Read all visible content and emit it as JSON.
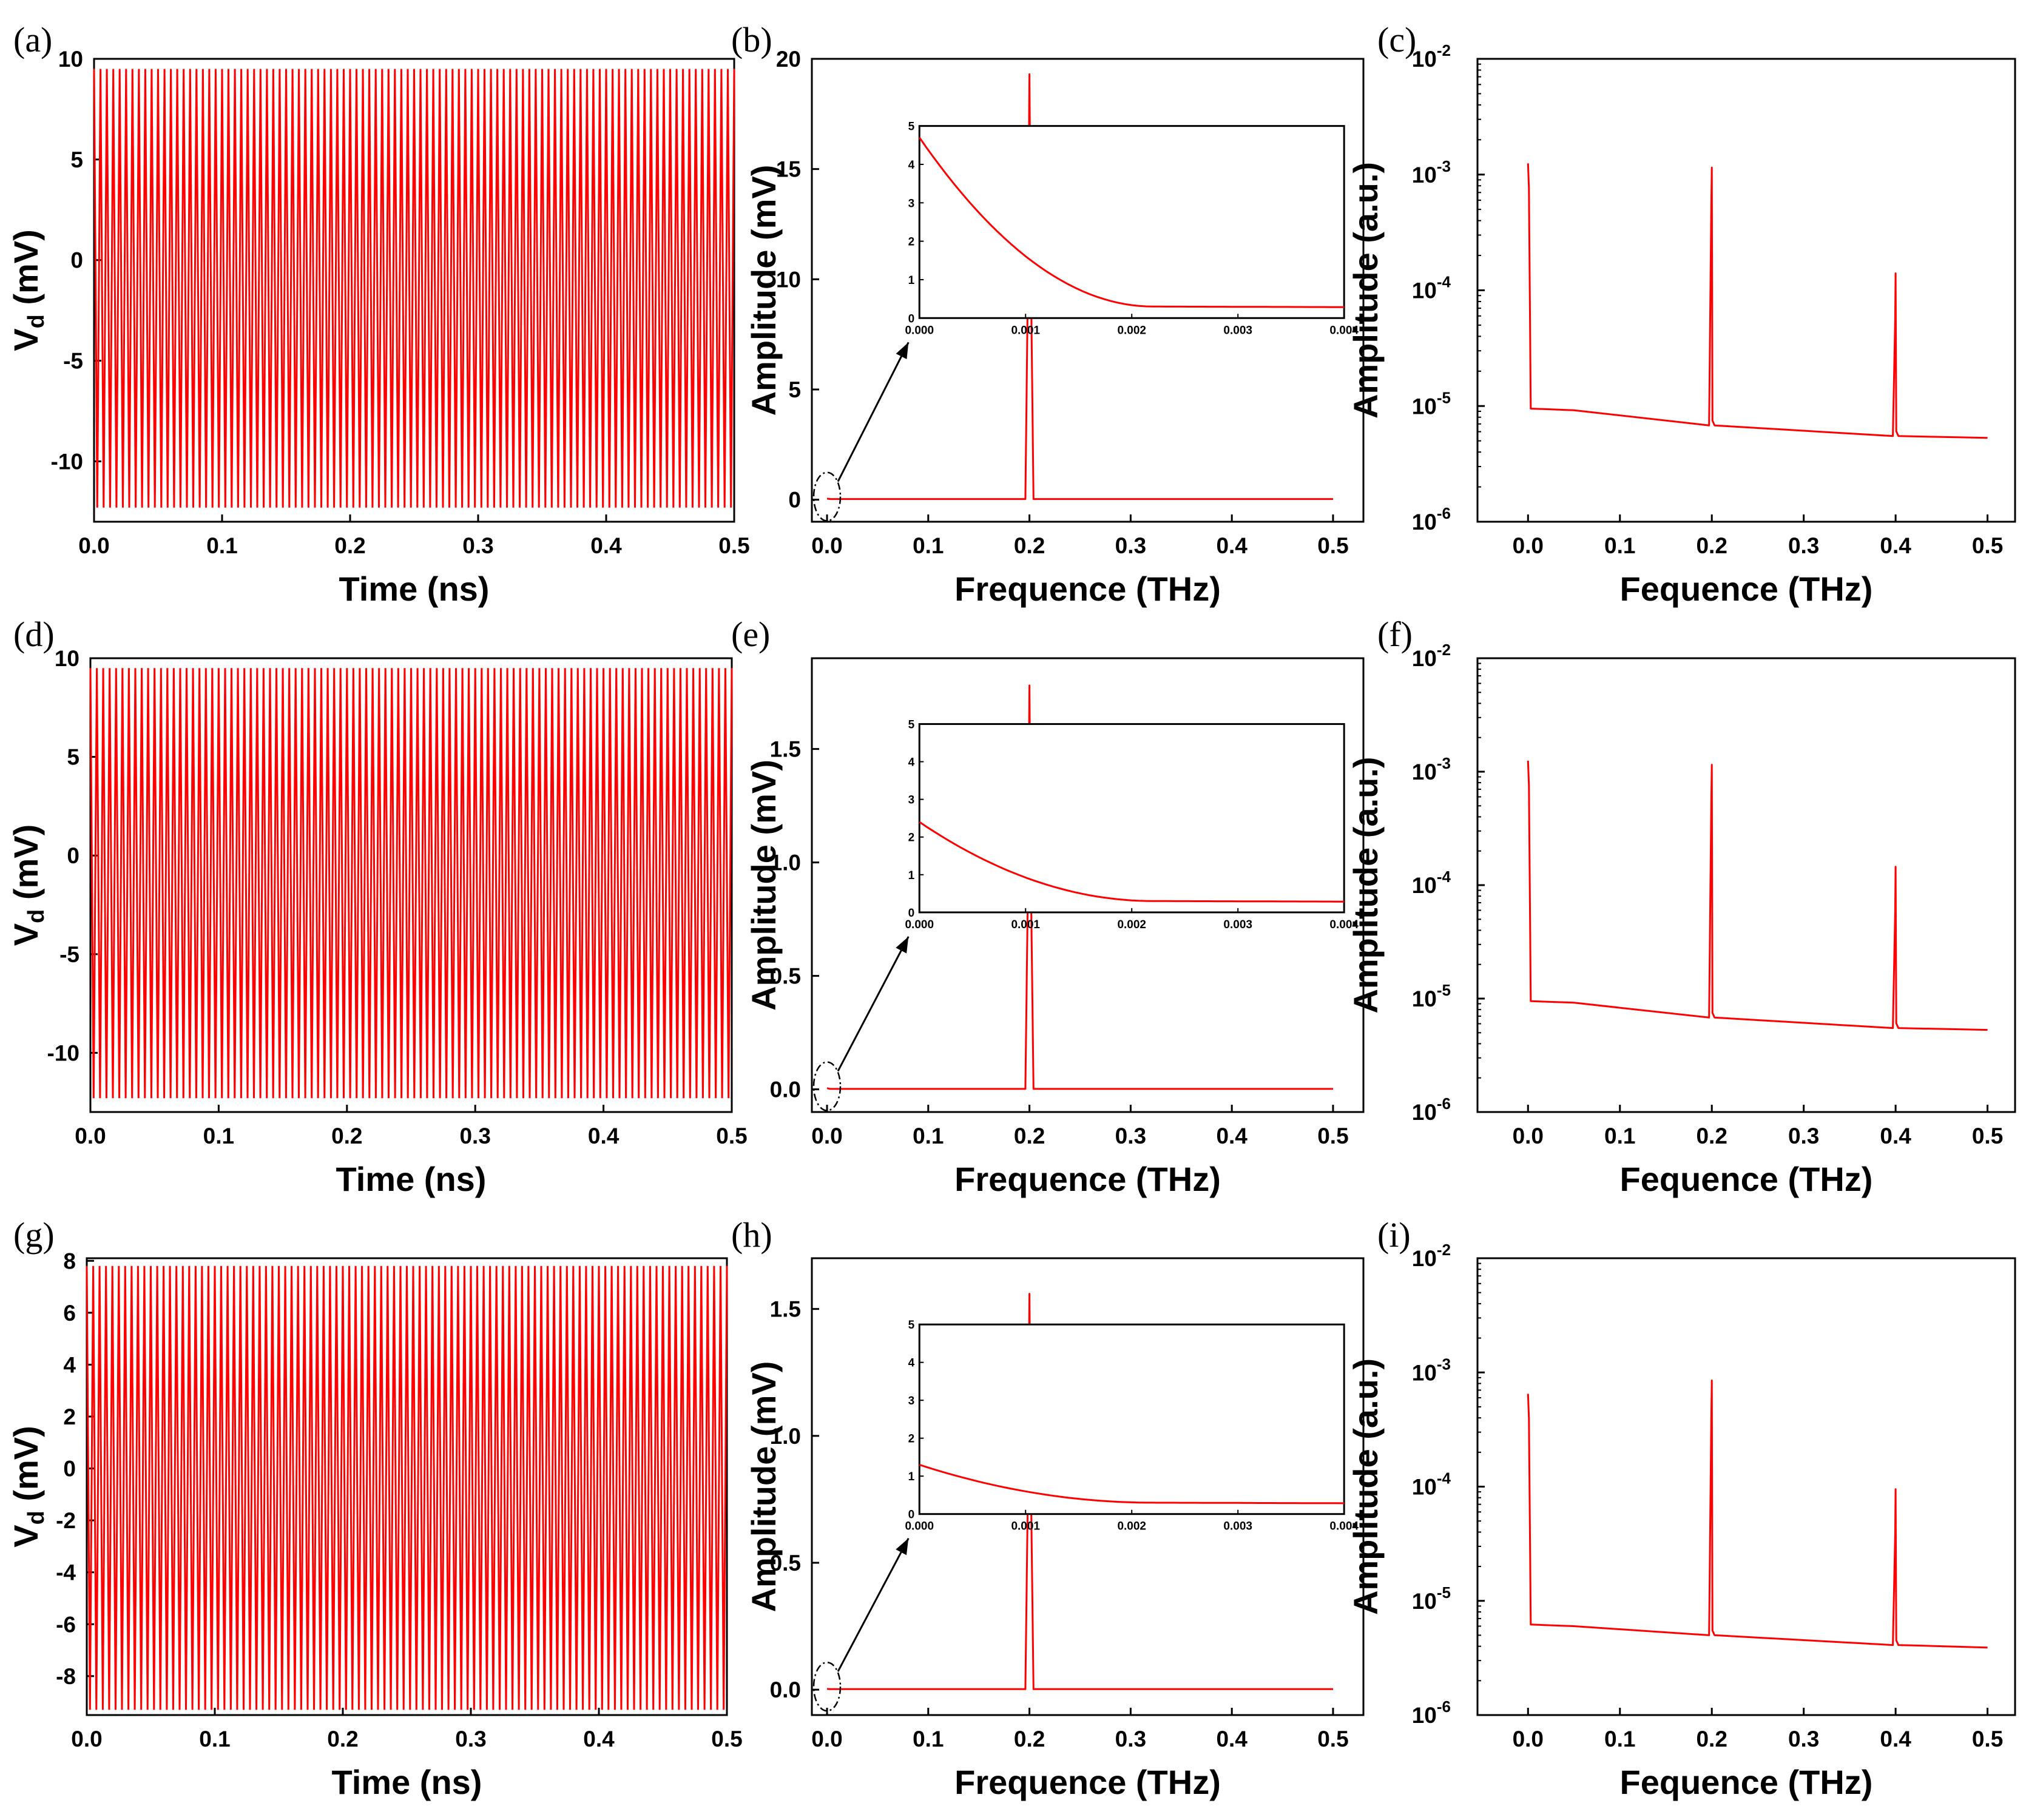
{
  "figure": {
    "panels": [
      {
        "id": "a",
        "letter": "(a)",
        "type": "time"
      },
      {
        "id": "b",
        "letter": "(b)",
        "type": "spectrum"
      },
      {
        "id": "c",
        "letter": "(c)",
        "type": "logspectrum"
      },
      {
        "id": "d",
        "letter": "(d)",
        "type": "time"
      },
      {
        "id": "e",
        "letter": "(e)",
        "type": "spectrum"
      },
      {
        "id": "f",
        "letter": "(f)",
        "type": "logspectrum"
      },
      {
        "id": "g",
        "letter": "(g)",
        "type": "time"
      },
      {
        "id": "h",
        "letter": "(h)",
        "type": "spectrum"
      },
      {
        "id": "i",
        "letter": "(i)",
        "type": "logspectrum"
      }
    ],
    "line_color": "#ff0000",
    "arrow_color": "#000000"
  },
  "chart_data": [
    {
      "id": "a",
      "type": "line",
      "title": "",
      "xlabel": "Time (ns)",
      "ylabel_main": "V",
      "ylabel_sub": "d",
      "ylabel_unit": " (mV)",
      "xlim": [
        0,
        0.5
      ],
      "ylim": [
        -13,
        10
      ],
      "xticks": [
        "0.0",
        "0.1",
        "0.2",
        "0.3",
        "0.4",
        "0.5"
      ],
      "xtick_values": [
        0,
        0.1,
        0.2,
        0.3,
        0.4,
        0.5
      ],
      "yticks": [
        "10",
        "5",
        "0",
        "-5",
        "-10"
      ],
      "ytick_values": [
        10,
        5,
        0,
        -5,
        -10
      ],
      "series": [
        {
          "name": "Vd",
          "kind": "oscillation",
          "frequency_THz": 0.2,
          "max": 9.5,
          "min": -12.3,
          "cycles_drawn": 100
        }
      ]
    },
    {
      "id": "b",
      "type": "line",
      "title": "",
      "xlabel": "Frequence (THz)",
      "ylabel": "Amplitude (mV)",
      "xlim": [
        -0.015,
        0.53
      ],
      "ylim": [
        -1,
        20
      ],
      "xticks": [
        "0.0",
        "0.1",
        "0.2",
        "0.3",
        "0.4",
        "0.5"
      ],
      "xtick_values": [
        0,
        0.1,
        0.2,
        0.3,
        0.4,
        0.5
      ],
      "yticks": [
        "20",
        "15",
        "10",
        "5",
        "0"
      ],
      "ytick_values": [
        20,
        15,
        10,
        5,
        0
      ],
      "series": [
        {
          "name": "spectrum",
          "x": [
            0,
            0.003,
            0.196,
            0.1985,
            0.2,
            0.2015,
            0.204,
            0.5
          ],
          "y": [
            0.05,
            0.03,
            0.03,
            10,
            19.3,
            10,
            0.03,
            0.03
          ]
        }
      ],
      "inset": {
        "xlim": [
          0,
          0.004
        ],
        "ylim": [
          0,
          5
        ],
        "xticks": [
          "0.000",
          "0.001",
          "0.002",
          "0.003",
          "0.004"
        ],
        "xtick_values": [
          0,
          0.001,
          0.002,
          0.003,
          0.004
        ],
        "yticks": [
          "0",
          "1",
          "2",
          "3",
          "4",
          "5"
        ],
        "ytick_values": [
          0,
          1,
          2,
          3,
          4,
          5
        ],
        "y0": 4.7,
        "floor": 0.3,
        "knee": 0.0022
      }
    },
    {
      "id": "c",
      "type": "line",
      "title": "",
      "xlabel": "Fequence (THz)",
      "ylabel": "Amplitude (a.u.)",
      "yscale": "log",
      "xlim": [
        -0.055,
        0.53
      ],
      "ylim": [
        1e-06,
        0.01
      ],
      "xticks": [
        "0.0",
        "0.1",
        "0.2",
        "0.3",
        "0.4",
        "0.5"
      ],
      "xtick_values": [
        0,
        0.1,
        0.2,
        0.3,
        0.4,
        0.5
      ],
      "yticks": [
        "-2",
        "-3",
        "-4",
        "-5",
        "-6"
      ],
      "ytick_exponents": [
        -2,
        -3,
        -4,
        -5,
        -6
      ],
      "ytick_base": "10",
      "series": [
        {
          "name": "spectrum",
          "peaks": [
            {
              "x": 0,
              "y": 0.00125
            },
            {
              "x": 0.2,
              "y": 0.00115
            },
            {
              "x": 0.4,
              "y": 0.00014
            }
          ],
          "baseline": [
            {
              "x": 0.003,
              "y": 9.5e-06
            },
            {
              "x": 0.05,
              "y": 9.2e-06
            },
            {
              "x": 0.2,
              "y": 6.8e-06
            },
            {
              "x": 0.4,
              "y": 5.5e-06
            },
            {
              "x": 0.5,
              "y": 5.3e-06
            }
          ]
        }
      ]
    },
    {
      "id": "d",
      "type": "line",
      "title": "",
      "xlabel": "Time (ns)",
      "ylabel_main": "V",
      "ylabel_sub": "d",
      "ylabel_unit": " (mV)",
      "xlim": [
        0,
        0.5
      ],
      "ylim": [
        -13,
        10
      ],
      "xticks": [
        "0.0",
        "0.1",
        "0.2",
        "0.3",
        "0.4",
        "0.5"
      ],
      "xtick_values": [
        0,
        0.1,
        0.2,
        0.3,
        0.4,
        0.5
      ],
      "yticks": [
        "10",
        "5",
        "0",
        "-5",
        "-10"
      ],
      "ytick_values": [
        10,
        5,
        0,
        -5,
        -10
      ],
      "series": [
        {
          "name": "Vd",
          "kind": "oscillation",
          "frequency_THz": 0.2,
          "max": 9.5,
          "min": -12.3,
          "cycles_drawn": 100
        }
      ]
    },
    {
      "id": "e",
      "type": "line",
      "title": "",
      "xlabel": "Frequence (THz)",
      "ylabel": "Amplitude (mV)",
      "xlim": [
        -0.015,
        0.53
      ],
      "ylim": [
        -0.1,
        1.9
      ],
      "xticks": [
        "0.0",
        "0.1",
        "0.2",
        "0.3",
        "0.4",
        "0.5"
      ],
      "xtick_values": [
        0,
        0.1,
        0.2,
        0.3,
        0.4,
        0.5
      ],
      "yticks": [
        "1.5",
        "1.0",
        "0.5",
        "0.0"
      ],
      "ytick_values": [
        1.5,
        1.0,
        0.5,
        0.0
      ],
      "series": [
        {
          "name": "spectrum",
          "x": [
            0,
            0.003,
            0.196,
            0.1985,
            0.2,
            0.2015,
            0.204,
            0.5
          ],
          "y": [
            0.005,
            0.002,
            0.002,
            0.9,
            1.78,
            0.9,
            0.002,
            0.002
          ]
        }
      ],
      "inset": {
        "xlim": [
          0,
          0.004
        ],
        "ylim": [
          0,
          5
        ],
        "xticks": [
          "0.000",
          "0.001",
          "0.002",
          "0.003",
          "0.004"
        ],
        "xtick_values": [
          0,
          0.001,
          0.002,
          0.003,
          0.004
        ],
        "yticks": [
          "0",
          "1",
          "2",
          "3",
          "4",
          "5"
        ],
        "ytick_values": [
          0,
          1,
          2,
          3,
          4,
          5
        ],
        "y0": 2.4,
        "floor": 0.3,
        "knee": 0.0022
      }
    },
    {
      "id": "f",
      "type": "line",
      "title": "",
      "xlabel": "Fequence (THz)",
      "ylabel": "Amplitude (a.u.)",
      "yscale": "log",
      "xlim": [
        -0.055,
        0.53
      ],
      "ylim": [
        1e-06,
        0.01
      ],
      "xticks": [
        "0.0",
        "0.1",
        "0.2",
        "0.3",
        "0.4",
        "0.5"
      ],
      "xtick_values": [
        0,
        0.1,
        0.2,
        0.3,
        0.4,
        0.5
      ],
      "yticks": [
        "-2",
        "-3",
        "-4",
        "-5",
        "-6"
      ],
      "ytick_exponents": [
        -2,
        -3,
        -4,
        -5,
        -6
      ],
      "ytick_base": "10",
      "series": [
        {
          "name": "spectrum",
          "peaks": [
            {
              "x": 0,
              "y": 0.00125
            },
            {
              "x": 0.2,
              "y": 0.00115
            },
            {
              "x": 0.4,
              "y": 0.000145
            }
          ],
          "baseline": [
            {
              "x": 0.003,
              "y": 9.5e-06
            },
            {
              "x": 0.05,
              "y": 9.2e-06
            },
            {
              "x": 0.2,
              "y": 6.8e-06
            },
            {
              "x": 0.4,
              "y": 5.5e-06
            },
            {
              "x": 0.5,
              "y": 5.3e-06
            }
          ]
        }
      ]
    },
    {
      "id": "g",
      "type": "line",
      "title": "",
      "xlabel": "Time (ns)",
      "ylabel_main": "V",
      "ylabel_sub": "d",
      "ylabel_unit": " (mV)",
      "xlim": [
        0,
        0.5
      ],
      "ylim": [
        -9.5,
        8.1
      ],
      "xticks": [
        "0.0",
        "0.1",
        "0.2",
        "0.3",
        "0.4",
        "0.5"
      ],
      "xtick_values": [
        0,
        0.1,
        0.2,
        0.3,
        0.4,
        0.5
      ],
      "yticks": [
        "8",
        "6",
        "4",
        "2",
        "0",
        "-2",
        "-4",
        "-6",
        "-8"
      ],
      "ytick_values": [
        8,
        6,
        4,
        2,
        0,
        -2,
        -4,
        -6,
        -8
      ],
      "series": [
        {
          "name": "Vd",
          "kind": "oscillation",
          "frequency_THz": 0.2,
          "max": 7.8,
          "min": -9.3,
          "cycles_drawn": 100
        }
      ]
    },
    {
      "id": "h",
      "type": "line",
      "title": "",
      "xlabel": "Frequence (THz)",
      "ylabel": "Amplitude (mV)",
      "xlim": [
        -0.015,
        0.53
      ],
      "ylim": [
        -0.1,
        1.7
      ],
      "xticks": [
        "0.0",
        "0.1",
        "0.2",
        "0.3",
        "0.4",
        "0.5"
      ],
      "xtick_values": [
        0,
        0.1,
        0.2,
        0.3,
        0.4,
        0.5
      ],
      "yticks": [
        "1.5",
        "1.0",
        "0.5",
        "0.0"
      ],
      "ytick_values": [
        1.5,
        1.0,
        0.5,
        0.0
      ],
      "series": [
        {
          "name": "spectrum",
          "x": [
            0,
            0.003,
            0.196,
            0.1985,
            0.2,
            0.2015,
            0.204,
            0.5
          ],
          "y": [
            0.003,
            0.002,
            0.002,
            0.8,
            1.56,
            0.8,
            0.002,
            0.002
          ]
        }
      ],
      "inset": {
        "xlim": [
          0,
          0.004
        ],
        "ylim": [
          0,
          5
        ],
        "xticks": [
          "0.000",
          "0.001",
          "0.002",
          "0.003",
          "0.004"
        ],
        "xtick_values": [
          0,
          0.001,
          0.002,
          0.003,
          0.004
        ],
        "yticks": [
          "0",
          "1",
          "2",
          "3",
          "4",
          "5"
        ],
        "ytick_values": [
          0,
          1,
          2,
          3,
          4,
          5
        ],
        "y0": 1.3,
        "floor": 0.3,
        "knee": 0.0022
      }
    },
    {
      "id": "i",
      "type": "line",
      "title": "",
      "xlabel": "Fequence (THz)",
      "ylabel": "Amplitude (a.u.)",
      "yscale": "log",
      "xlim": [
        -0.055,
        0.53
      ],
      "ylim": [
        1e-06,
        0.01
      ],
      "xticks": [
        "0.0",
        "0.1",
        "0.2",
        "0.3",
        "0.4",
        "0.5"
      ],
      "xtick_values": [
        0,
        0.1,
        0.2,
        0.3,
        0.4,
        0.5
      ],
      "yticks": [
        "-2",
        "-3",
        "-4",
        "-5",
        "-6"
      ],
      "ytick_exponents": [
        -2,
        -3,
        -4,
        -5,
        -6
      ],
      "ytick_base": "10",
      "series": [
        {
          "name": "spectrum",
          "peaks": [
            {
              "x": 0,
              "y": 0.00065
            },
            {
              "x": 0.2,
              "y": 0.00085
            },
            {
              "x": 0.4,
              "y": 9.5e-05
            }
          ],
          "baseline": [
            {
              "x": 0.003,
              "y": 6.2e-06
            },
            {
              "x": 0.05,
              "y": 6e-06
            },
            {
              "x": 0.2,
              "y": 5e-06
            },
            {
              "x": 0.4,
              "y": 4.1e-06
            },
            {
              "x": 0.5,
              "y": 3.9e-06
            }
          ]
        }
      ]
    }
  ]
}
